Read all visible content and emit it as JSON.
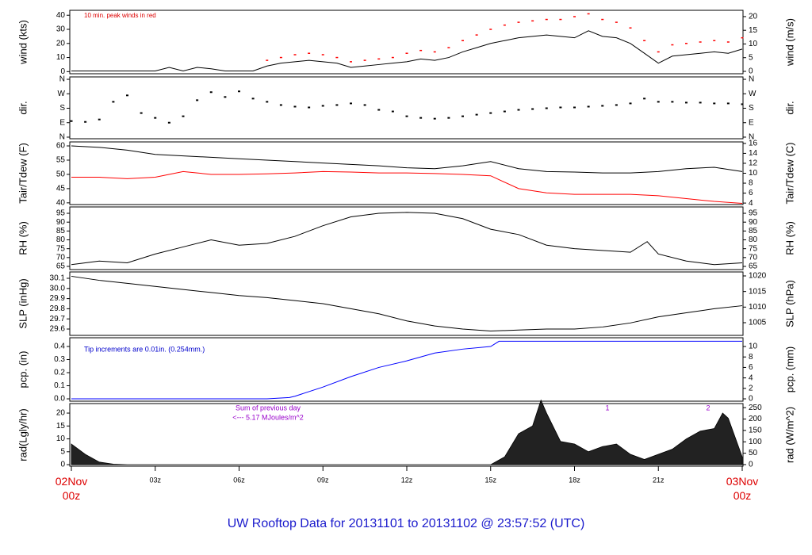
{
  "title": "UW Rooftop Data for 20131101  to  20131102 @ 23:57:52  (UTC)",
  "chart_data": [
    {
      "type": "line",
      "y_label": "wind (kts)",
      "y2_label": "wind (m/s)",
      "xlim": [
        0,
        24
      ],
      "ylim": [
        -1.5,
        43.5
      ],
      "yticks": [
        0,
        10,
        20,
        30,
        40
      ],
      "y2lim": [
        -0.87,
        22.3
      ],
      "y2ticks": [
        0,
        5,
        10,
        15,
        20
      ],
      "annotations": [
        {
          "text": "10 min. peak winds in red",
          "color": "#dd0000"
        }
      ],
      "series": [
        {
          "style": "line",
          "color": "#000000",
          "x": [
            0,
            0.5,
            1,
            1.5,
            2,
            2.5,
            3,
            3.5,
            4,
            4.5,
            5,
            5.5,
            6,
            6.5,
            7,
            7.5,
            8,
            8.5,
            9,
            9.5,
            10,
            10.5,
            11,
            11.5,
            12,
            12.5,
            13,
            13.5,
            14,
            14.5,
            15,
            15.5,
            16,
            16.5,
            17,
            17.5,
            18,
            18.5,
            19,
            19.5,
            20,
            20.5,
            21,
            21.5,
            22,
            22.5,
            23,
            23.5,
            24
          ],
          "values": [
            0.5,
            0.5,
            0.5,
            0.5,
            0.5,
            0.5,
            0.5,
            3,
            0.5,
            3,
            2,
            0.5,
            0.5,
            0.5,
            4,
            6,
            7,
            8,
            7,
            6,
            3,
            4,
            5,
            6,
            7,
            9,
            8,
            10,
            14,
            17,
            20,
            22,
            24,
            25,
            26,
            25,
            24,
            29,
            25,
            24,
            20,
            13,
            6,
            11,
            12,
            13,
            14,
            13,
            16
          ]
        },
        {
          "style": "points",
          "color": "#ff0000",
          "x": [
            7,
            7.5,
            8,
            8.5,
            9,
            9.5,
            10,
            10.5,
            11,
            11.5,
            12,
            12.5,
            13,
            13.5,
            14,
            14.5,
            15,
            15.5,
            16,
            16.5,
            17,
            17.5,
            18,
            18.5,
            19,
            19.5,
            20,
            20.5,
            21,
            21.5,
            22,
            22.5,
            23,
            23.5,
            24
          ],
          "values": [
            8,
            10,
            12,
            13,
            12,
            10,
            7,
            8,
            9,
            10,
            13,
            15,
            14,
            17,
            22,
            26,
            30,
            33,
            35,
            36,
            37,
            37,
            39,
            41,
            37,
            35,
            31,
            22,
            14,
            19,
            20,
            21,
            22,
            21,
            24
          ]
        }
      ]
    },
    {
      "type": "scatter",
      "y_label": "dir.",
      "y2_label": "dir.",
      "xlim": [
        0,
        24
      ],
      "ylim": [
        -10,
        375
      ],
      "yticks": [
        {
          "value": 0,
          "label": "N"
        },
        {
          "value": 90,
          "label": "E"
        },
        {
          "value": 180,
          "label": "S"
        },
        {
          "value": 270,
          "label": "W"
        },
        {
          "value": 360,
          "label": "N"
        }
      ],
      "y2lim": [
        -10,
        375
      ],
      "y2ticks": [
        {
          "value": 0,
          "label": "N"
        },
        {
          "value": 90,
          "label": "E"
        },
        {
          "value": 180,
          "label": "S"
        },
        {
          "value": 270,
          "label": "W"
        },
        {
          "value": 360,
          "label": "N"
        }
      ],
      "series": [
        {
          "style": "points",
          "color": "#000000",
          "x": [
            0,
            0.5,
            1,
            1.5,
            2,
            2.5,
            3,
            3.5,
            4,
            4.5,
            5,
            5.5,
            6,
            6.5,
            7,
            7.5,
            8,
            8.5,
            9,
            9.5,
            10,
            10.5,
            11,
            11.5,
            12,
            12.5,
            13,
            13.5,
            14,
            14.5,
            15,
            15.5,
            16,
            16.5,
            17,
            17.5,
            18,
            18.5,
            19,
            19.5,
            20,
            20.5,
            21,
            21.5,
            22,
            22.5,
            23,
            23.5,
            24
          ],
          "values": [
            100,
            95,
            110,
            220,
            260,
            150,
            120,
            90,
            130,
            230,
            280,
            250,
            285,
            240,
            220,
            200,
            190,
            185,
            195,
            200,
            210,
            200,
            170,
            160,
            130,
            120,
            115,
            120,
            130,
            140,
            150,
            160,
            170,
            175,
            180,
            185,
            185,
            190,
            195,
            200,
            210,
            240,
            220,
            220,
            215,
            215,
            210,
            210,
            205
          ]
        }
      ]
    },
    {
      "type": "line",
      "y_label": "Tair/Tdew (F)",
      "y2_label": "Tair/Tdew (C)",
      "xlim": [
        0,
        24
      ],
      "ylim": [
        39.4,
        61.4
      ],
      "yticks": [
        40,
        45,
        50,
        55,
        60
      ],
      "y2lim": [
        3.7,
        16.3
      ],
      "y2ticks": [
        4,
        6,
        8,
        10,
        12,
        14,
        16
      ],
      "series": [
        {
          "style": "line",
          "color": "#000000",
          "x": [
            0,
            1,
            2,
            3,
            4,
            5,
            6,
            7,
            8,
            9,
            10,
            11,
            12,
            13,
            14,
            15,
            16,
            17,
            18,
            19,
            20,
            21,
            22,
            23,
            24
          ],
          "values": [
            60,
            59.5,
            58.5,
            57,
            56.5,
            56,
            55.5,
            55,
            54.5,
            54,
            53.5,
            53,
            52.3,
            52,
            53,
            54.5,
            52,
            51,
            50.8,
            50.5,
            50.5,
            51,
            52,
            52.5,
            51
          ]
        },
        {
          "style": "line",
          "color": "#ff0000",
          "x": [
            0,
            1,
            2,
            3,
            4,
            5,
            6,
            7,
            8,
            9,
            10,
            11,
            12,
            13,
            14,
            15,
            16,
            17,
            18,
            19,
            20,
            21,
            22,
            23,
            24
          ],
          "values": [
            49,
            49,
            48.5,
            49,
            51,
            50,
            50,
            50.2,
            50.5,
            51,
            50.8,
            50.5,
            50.5,
            50.3,
            50,
            49.5,
            45,
            43.5,
            43,
            43,
            43,
            42.5,
            41.5,
            40.5,
            39.8
          ]
        }
      ]
    },
    {
      "type": "line",
      "y_label": "RH (%)",
      "y2_label": "RH (%)",
      "xlim": [
        0,
        24
      ],
      "ylim": [
        63.2,
        98.6
      ],
      "yticks": [
        65,
        70,
        75,
        80,
        85,
        90,
        95
      ],
      "y2lim": [
        63.2,
        98.6
      ],
      "y2ticks": [
        65,
        70,
        75,
        80,
        85,
        90,
        95
      ],
      "series": [
        {
          "style": "line",
          "color": "#000000",
          "x": [
            0,
            1,
            2,
            3,
            4,
            5,
            6,
            7,
            8,
            9,
            10,
            11,
            12,
            13,
            14,
            15,
            16,
            17,
            18,
            19,
            20,
            20.6,
            21,
            22,
            23,
            24
          ],
          "values": [
            66,
            68,
            67,
            72,
            76,
            80,
            77,
            78,
            82,
            88,
            93,
            95,
            95.5,
            95,
            92,
            86,
            83,
            77,
            75,
            74,
            73,
            79,
            72,
            68,
            66,
            67
          ]
        }
      ]
    },
    {
      "type": "line",
      "y_label": "SLP (inHg)",
      "y2_label": "SLP (hPa)",
      "xlim": [
        0,
        24
      ],
      "ylim": [
        29.5375,
        30.1625
      ],
      "yticks": [
        29.6,
        29.7,
        29.8,
        29.9,
        {
          "value": 30,
          "label": "30.0"
        },
        30.1
      ],
      "y2lim": [
        1000.93,
        1021.27
      ],
      "y2ticks": [
        1005,
        1010,
        1015,
        1020
      ],
      "series": [
        {
          "style": "line",
          "color": "#000000",
          "x": [
            0,
            1,
            2,
            3,
            4,
            5,
            6,
            7,
            8,
            9,
            10,
            11,
            12,
            13,
            14,
            15,
            16,
            17,
            18,
            19,
            20,
            21,
            22,
            23,
            24
          ],
          "values": [
            30.12,
            30.08,
            30.05,
            30.02,
            29.99,
            29.96,
            29.93,
            29.91,
            29.88,
            29.85,
            29.8,
            29.75,
            29.68,
            29.63,
            29.6,
            29.58,
            29.59,
            29.6,
            29.6,
            29.62,
            29.66,
            29.72,
            29.76,
            29.8,
            29.83
          ]
        }
      ]
    },
    {
      "type": "line",
      "y_label": "pcp. (in)",
      "y2_label": "pcp. (mm)",
      "xlim": [
        0,
        24
      ],
      "ylim": [
        -0.018,
        0.4667
      ],
      "yticks": [
        {
          "value": 0,
          "label": "0.0"
        },
        0.1,
        0.2,
        0.3,
        0.4
      ],
      "y2lim": [
        -0.45,
        11.67
      ],
      "y2ticks": [
        0,
        2,
        4,
        6,
        8,
        10
      ],
      "annotations": [
        {
          "text": "Tip increments are 0.01in. (0.254mm.)",
          "color": "#0000cc"
        }
      ],
      "series": [
        {
          "style": "line",
          "color": "#0000ff",
          "x": [
            0,
            7,
            7.8,
            8,
            9,
            10,
            11,
            12,
            13,
            14,
            15,
            15.3,
            24
          ],
          "values": [
            0,
            0,
            0.01,
            0.02,
            0.09,
            0.17,
            0.24,
            0.29,
            0.35,
            0.38,
            0.4,
            0.44,
            0.44
          ]
        }
      ]
    },
    {
      "type": "area",
      "y_label": "rad(Lgly/hr)",
      "y2_label": "rad (W/m^2)",
      "xlim": [
        0,
        24
      ],
      "ylim": [
        -0.6,
        23.7
      ],
      "yticks": [
        0,
        5,
        10,
        15,
        20
      ],
      "y2lim": [
        -7.1,
        267.9
      ],
      "y2ticks": [
        0,
        50,
        100,
        150,
        200,
        250
      ],
      "xticks": [
        {
          "value": 0,
          "label": "02Nov\n00z"
        },
        {
          "value": 3,
          "label": "03z"
        },
        {
          "value": 6,
          "label": "06z"
        },
        {
          "value": 9,
          "label": "09z"
        },
        {
          "value": 12,
          "label": "12z"
        },
        {
          "value": 15,
          "label": "15z"
        },
        {
          "value": 18,
          "label": "18z"
        },
        {
          "value": 21,
          "label": "21z"
        },
        {
          "value": 24,
          "label": "03Nov\n00z"
        }
      ],
      "annotations": [
        {
          "text": "Sum of previous day",
          "color": "#9900cc"
        },
        {
          "text": "<--- 5.17 MJoules/m^2",
          "color": "#9900cc"
        },
        {
          "text": "1",
          "color": "#9900cc"
        },
        {
          "text": "2",
          "color": "#9900cc"
        }
      ],
      "series": [
        {
          "style": "area",
          "color": "#222222",
          "x": [
            0,
            0.5,
            1,
            1.5,
            2,
            15,
            15.5,
            16,
            16.5,
            16.8,
            17,
            17.5,
            18,
            18.5,
            19,
            19.5,
            20,
            20.5,
            21,
            21.5,
            22,
            22.5,
            23,
            23.3,
            23.5,
            24
          ],
          "values": [
            8,
            4,
            1,
            0.2,
            0,
            0,
            3,
            12,
            15,
            25,
            20,
            9,
            8,
            5,
            7,
            8,
            4,
            2,
            4,
            6,
            10,
            13,
            14,
            20,
            18,
            3
          ]
        }
      ]
    }
  ]
}
